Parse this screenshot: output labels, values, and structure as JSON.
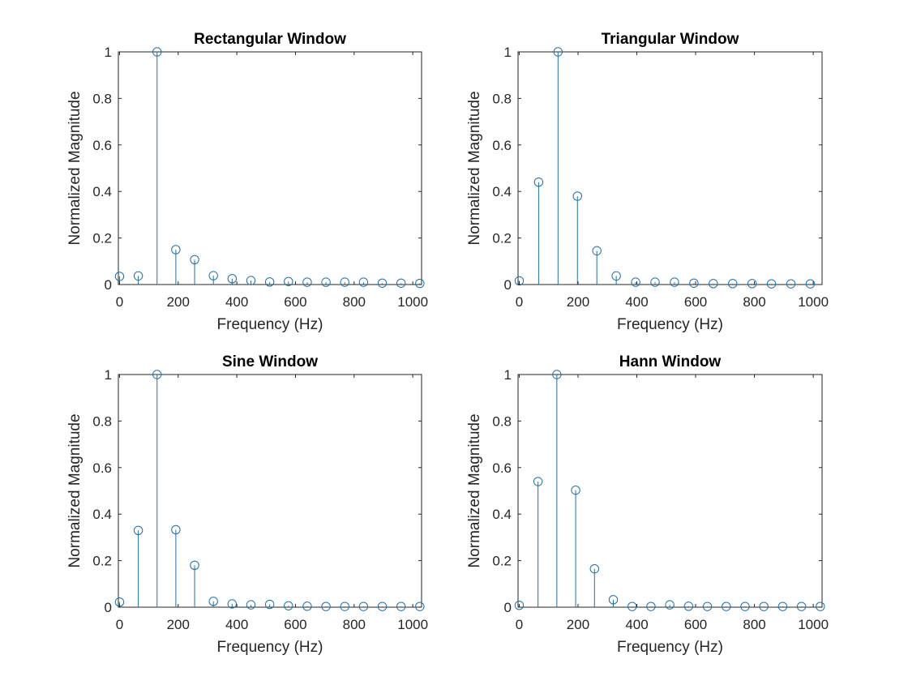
{
  "figure": {
    "stem_color": "#1f6fa8",
    "axis_color": "#262626"
  },
  "chart_data": [
    {
      "type": "stem",
      "title": "Rectangular Window",
      "xlabel": "Frequency (Hz)",
      "ylabel": "Normalized Magnitude",
      "xlim": [
        -4,
        1030
      ],
      "ylim": [
        0,
        1
      ],
      "xticks": [
        0,
        200,
        400,
        600,
        800,
        1000
      ],
      "yticks": [
        0,
        0.2,
        0.4,
        0.6,
        0.8,
        1
      ],
      "xtick_labels": [
        "0",
        "200",
        "400",
        "600",
        "800",
        "1000"
      ],
      "ytick_labels": [
        "0",
        "0.2",
        "0.4",
        "0.6",
        "0.8",
        "1"
      ],
      "grid": false,
      "x": [
        0,
        64,
        128,
        192,
        256,
        320,
        384,
        448,
        512,
        576,
        640,
        704,
        768,
        832,
        896,
        960,
        1024
      ],
      "values": [
        0.035,
        0.037,
        1.0,
        0.15,
        0.107,
        0.038,
        0.025,
        0.017,
        0.011,
        0.013,
        0.01,
        0.01,
        0.01,
        0.01,
        0.006,
        0.006,
        0.005
      ]
    },
    {
      "type": "stem",
      "title": "Triangular Window",
      "xlabel": "Frequency (Hz)",
      "ylabel": "Normalized Magnitude",
      "xlim": [
        -4,
        1030
      ],
      "ylim": [
        0,
        1
      ],
      "xticks": [
        0,
        200,
        400,
        600,
        800,
        1000
      ],
      "yticks": [
        0,
        0.2,
        0.4,
        0.6,
        0.8,
        1
      ],
      "xtick_labels": [
        "0",
        "200",
        "400",
        "600",
        "800",
        "1000"
      ],
      "ytick_labels": [
        "0",
        "0.2",
        "0.4",
        "0.6",
        "0.8",
        "1"
      ],
      "grid": false,
      "x": [
        0,
        66,
        132,
        198,
        264,
        330,
        396,
        462,
        528,
        594,
        660,
        726,
        792,
        858,
        924,
        990
      ],
      "values": [
        0.016,
        0.44,
        1.0,
        0.38,
        0.145,
        0.037,
        0.01,
        0.01,
        0.01,
        0.006,
        0.004,
        0.004,
        0.004,
        0.003,
        0.003,
        0.003
      ]
    },
    {
      "type": "stem",
      "title": "Sine Window",
      "xlabel": "Frequency (Hz)",
      "ylabel": "Normalized Magnitude",
      "xlim": [
        -4,
        1030
      ],
      "ylim": [
        0,
        1
      ],
      "xticks": [
        0,
        200,
        400,
        600,
        800,
        1000
      ],
      "yticks": [
        0,
        0.2,
        0.4,
        0.6,
        0.8,
        1
      ],
      "xtick_labels": [
        "0",
        "200",
        "400",
        "600",
        "800",
        "1000"
      ],
      "ytick_labels": [
        "0",
        "0.2",
        "0.4",
        "0.6",
        "0.8",
        "1"
      ],
      "grid": false,
      "x": [
        0,
        64,
        128,
        192,
        256,
        320,
        384,
        448,
        512,
        576,
        640,
        704,
        768,
        832,
        896,
        960,
        1024
      ],
      "values": [
        0.022,
        0.33,
        1.0,
        0.333,
        0.18,
        0.025,
        0.014,
        0.01,
        0.012,
        0.006,
        0.004,
        0.003,
        0.003,
        0.003,
        0.003,
        0.003,
        0.003
      ]
    },
    {
      "type": "stem",
      "title": "Hann Window",
      "xlabel": "Frequency (Hz)",
      "ylabel": "Normalized Magnitude",
      "xlim": [
        -4,
        1030
      ],
      "ylim": [
        0,
        1
      ],
      "xticks": [
        0,
        200,
        400,
        600,
        800,
        1000
      ],
      "yticks": [
        0,
        0.2,
        0.4,
        0.6,
        0.8,
        1
      ],
      "xtick_labels": [
        "0",
        "200",
        "400",
        "600",
        "800",
        "1000"
      ],
      "ytick_labels": [
        "0",
        "0.2",
        "0.4",
        "0.6",
        "0.8",
        "1"
      ],
      "grid": false,
      "x": [
        0,
        64,
        128,
        192,
        256,
        320,
        384,
        448,
        512,
        576,
        640,
        704,
        768,
        832,
        896,
        960,
        1024
      ],
      "values": [
        0.008,
        0.54,
        1.0,
        0.503,
        0.165,
        0.032,
        0.003,
        0.003,
        0.01,
        0.004,
        0.003,
        0.003,
        0.003,
        0.003,
        0.003,
        0.003,
        0.003
      ]
    }
  ]
}
